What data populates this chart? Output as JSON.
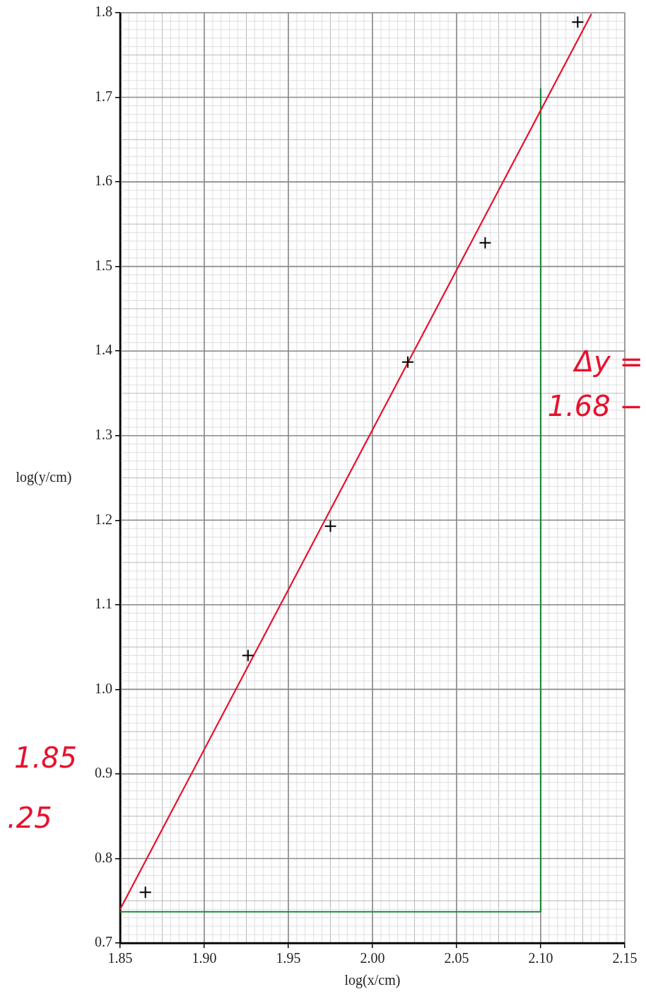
{
  "chart_data": {
    "type": "scatter",
    "xlabel": "log(x/cm)",
    "ylabel": "log(y/cm)",
    "xlim": [
      1.85,
      2.15
    ],
    "ylim": [
      0.7,
      1.8
    ],
    "xticks": [
      1.85,
      {
        "value": 1.9,
        "label": "1.90"
      },
      1.95,
      {
        "value": 2.0,
        "label": "2.00"
      },
      2.05,
      {
        "value": 2.1,
        "label": "2.10"
      },
      2.15
    ],
    "yticks": [
      0.7,
      0.8,
      0.9,
      {
        "value": 1.0,
        "label": "1.0"
      },
      1.1,
      1.2,
      1.3,
      1.4,
      1.5,
      1.6,
      1.7,
      1.8
    ],
    "grid": true,
    "marker": "cross",
    "legend": false,
    "series": [
      {
        "color": "#000000",
        "x": [
          1.865,
          1.926,
          1.975,
          2.021,
          2.067,
          2.122
        ],
        "values": [
          0.76,
          1.04,
          1.193,
          1.387,
          1.528,
          1.789
        ]
      },
      {
        "type": "line",
        "color": "#e8112d",
        "marker": "none",
        "x": [
          1.85,
          2.13
        ],
        "values": [
          0.74,
          1.798
        ]
      },
      {
        "type": "line",
        "color": "#1a8a3a",
        "marker": "none",
        "x": [
          1.85,
          2.1,
          2.1
        ],
        "values": [
          0.737,
          0.737,
          1.71
        ]
      }
    ],
    "annotations": [
      "Δy =",
      "1.68 −",
      "1.85",
      ".25"
    ]
  }
}
